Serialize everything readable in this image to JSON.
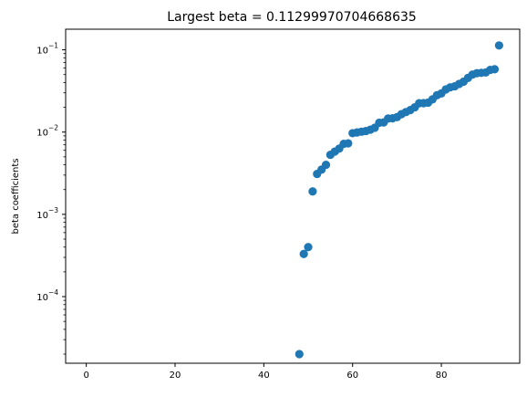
{
  "chart_data": {
    "type": "scatter",
    "title": "Largest beta = 0.11299970704668635",
    "xlabel": "",
    "ylabel": "beta coefficients",
    "yscale": "log",
    "xlim": [
      -4.65,
      97.65
    ],
    "ylim": [
      1.55e-05,
      0.178
    ],
    "x_ticks": [
      0,
      20,
      40,
      60,
      80
    ],
    "x_tick_labels": [
      "0",
      "20",
      "40",
      "60",
      "80"
    ],
    "y_ticks": [
      0.0001,
      0.001,
      0.01,
      0.1
    ],
    "y_tick_labels": [
      {
        "base": "10",
        "exp": "−4"
      },
      {
        "base": "10",
        "exp": "−3"
      },
      {
        "base": "10",
        "exp": "−2"
      },
      {
        "base": "10",
        "exp": "−1"
      }
    ],
    "grid": false,
    "legend": "none",
    "marker_color": "#1f77b4",
    "series": [
      {
        "x": [
          48,
          49,
          50,
          51,
          52,
          53,
          54,
          55,
          56,
          57,
          58,
          59,
          60,
          61,
          62,
          63,
          64,
          65,
          66,
          67,
          68,
          69,
          70,
          71,
          72,
          73,
          74,
          75,
          76,
          77,
          78,
          79,
          80,
          81,
          82,
          83,
          84,
          85,
          86,
          87,
          88,
          89,
          90,
          91,
          92,
          93
        ],
        "y": [
          2e-05,
          0.00033,
          0.0004,
          0.0019,
          0.0031,
          0.0035,
          0.004,
          0.0053,
          0.0058,
          0.0063,
          0.0072,
          0.0073,
          0.0097,
          0.0099,
          0.0101,
          0.0103,
          0.0107,
          0.0113,
          0.013,
          0.0131,
          0.0146,
          0.0147,
          0.0152,
          0.0165,
          0.0175,
          0.0185,
          0.02,
          0.0224,
          0.0225,
          0.0228,
          0.025,
          0.028,
          0.0295,
          0.033,
          0.035,
          0.036,
          0.0385,
          0.041,
          0.0455,
          0.05,
          0.052,
          0.0525,
          0.053,
          0.057,
          0.058,
          0.113
        ]
      }
    ]
  }
}
